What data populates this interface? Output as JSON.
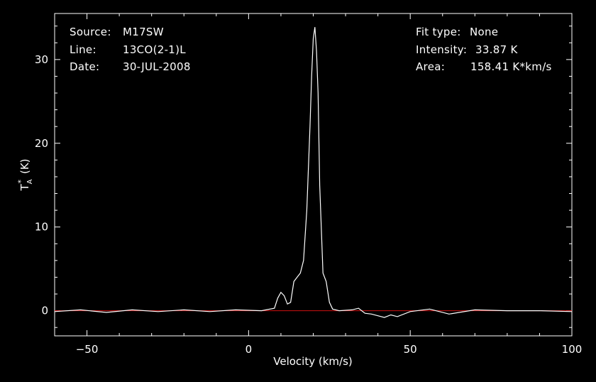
{
  "info_left": {
    "source_label": "Source:",
    "source_value": "M17SW",
    "line_label": "Line:",
    "line_value": "13CO(2-1)L",
    "date_label": "Date:",
    "date_value": "30-JUL-2008"
  },
  "info_right": {
    "fit_label": "Fit type:",
    "fit_value": "None",
    "intensity_label": "Intensity:",
    "intensity_value": "33.87 K",
    "area_label": "Area:",
    "area_value": "158.41 K*km/s"
  },
  "colors": {
    "background": "#000000",
    "foreground": "#ffffff",
    "baseline": "#d01010"
  },
  "chart_data": {
    "type": "line",
    "title": "",
    "xlabel": "Velocity (km/s)",
    "ylabel_main": "T",
    "ylabel_sup": "*",
    "ylabel_sub": "A",
    "ylabel_unit": "(K)",
    "xlim": [
      -60,
      100
    ],
    "ylim": [
      -3,
      35.5
    ],
    "xticks": [
      -50,
      0,
      50,
      100
    ],
    "yticks": [
      0,
      10,
      20,
      30
    ],
    "baseline_y": 0,
    "series": [
      {
        "color": "#ffffff",
        "x": [
          -60,
          -52,
          -44,
          -36,
          -28,
          -20,
          -12,
          -4,
          4,
          8,
          9,
          10,
          11,
          12,
          13,
          14,
          15,
          16,
          17,
          18,
          19,
          19.5,
          20,
          20.5,
          21,
          21.5,
          22,
          23,
          24,
          25,
          26,
          28,
          32,
          34,
          36,
          38,
          40,
          42,
          44,
          46,
          50,
          56,
          62,
          70,
          80,
          90,
          100
        ],
        "y": [
          -0.1,
          0.1,
          -0.2,
          0.1,
          -0.1,
          0.1,
          -0.1,
          0.1,
          0.0,
          0.3,
          1.5,
          2.2,
          1.8,
          0.8,
          1.0,
          3.5,
          4.0,
          4.5,
          6.0,
          12.0,
          22.0,
          28.0,
          32.5,
          33.87,
          31.0,
          26.0,
          15.0,
          4.5,
          3.5,
          1.0,
          0.2,
          0.0,
          0.1,
          0.3,
          -0.3,
          -0.4,
          -0.6,
          -0.8,
          -0.5,
          -0.7,
          -0.1,
          0.2,
          -0.4,
          0.1,
          0.0,
          0.0,
          -0.1
        ]
      }
    ]
  }
}
